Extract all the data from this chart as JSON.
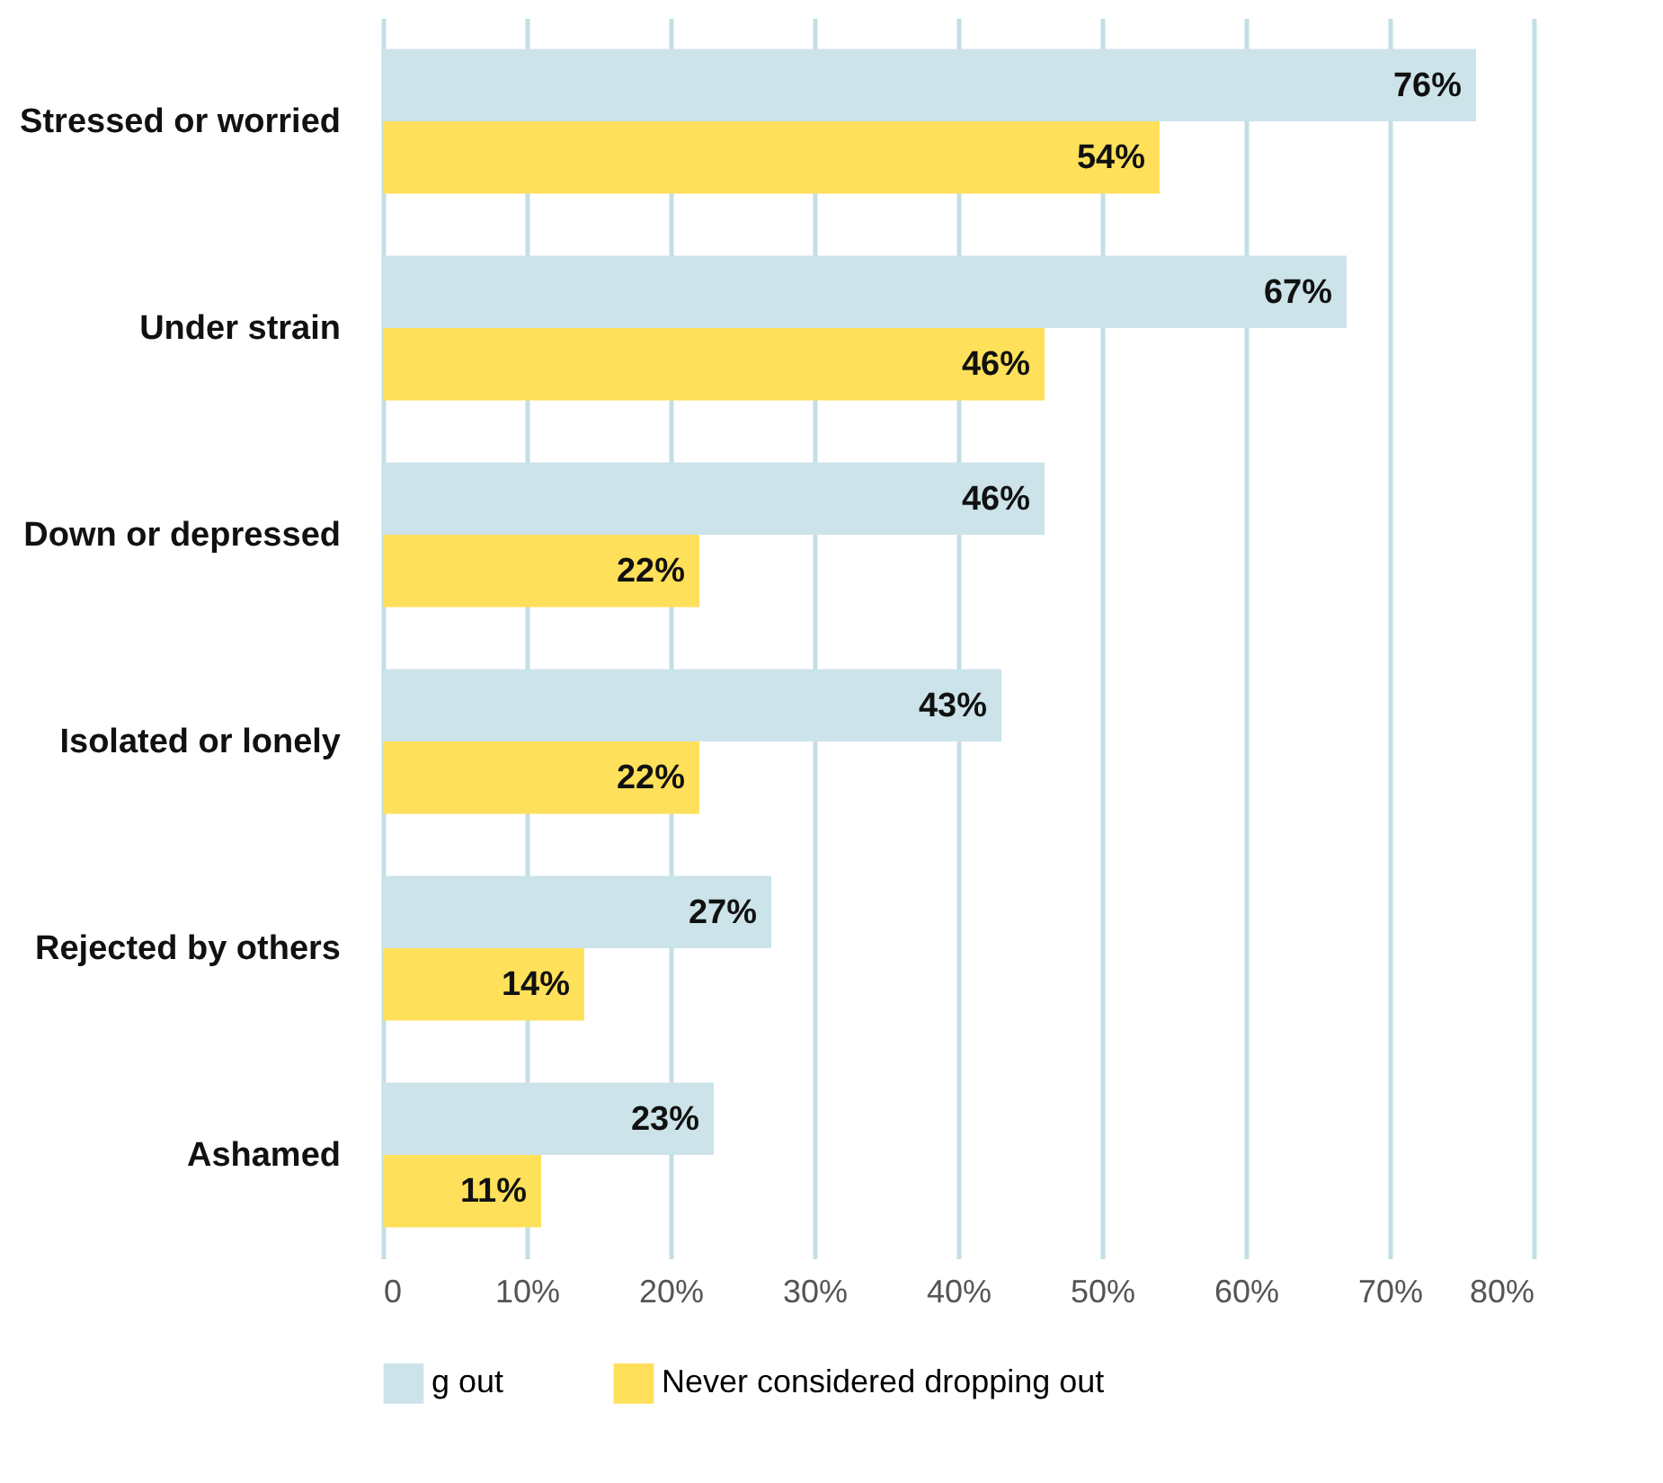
{
  "chart_data": {
    "type": "bar",
    "orientation": "horizontal",
    "categories": [
      "Stressed or worried",
      "Under strain",
      "Down or depressed",
      "Isolated or lonely",
      "Rejected by others",
      "Ashamed"
    ],
    "series": [
      {
        "name": "g out",
        "color": "#cce3ea",
        "values": [
          76,
          67,
          46,
          43,
          27,
          23
        ],
        "value_labels": [
          "76%",
          "67%",
          "46%",
          "43%",
          "27%",
          "23%"
        ]
      },
      {
        "name": "Never considered dropping out",
        "color": "#ffe05a",
        "values": [
          54,
          46,
          22,
          22,
          14,
          11
        ],
        "value_labels": [
          "54%",
          "46%",
          "22%",
          "22%",
          "14%",
          "11%"
        ]
      }
    ],
    "xlim": [
      0,
      80
    ],
    "xticks": [
      0,
      {
        "value": 10,
        "label": "10%"
      },
      {
        "value": 20,
        "label": "20%"
      },
      {
        "value": 30,
        "label": "30%"
      },
      {
        "value": 40,
        "label": "40%"
      },
      {
        "value": 50,
        "label": "50%"
      },
      {
        "value": 60,
        "label": "60%"
      },
      {
        "value": 70,
        "label": "70%"
      },
      {
        "value": 80,
        "label": "80%"
      }
    ],
    "grid": "x",
    "legend": "bottom"
  }
}
